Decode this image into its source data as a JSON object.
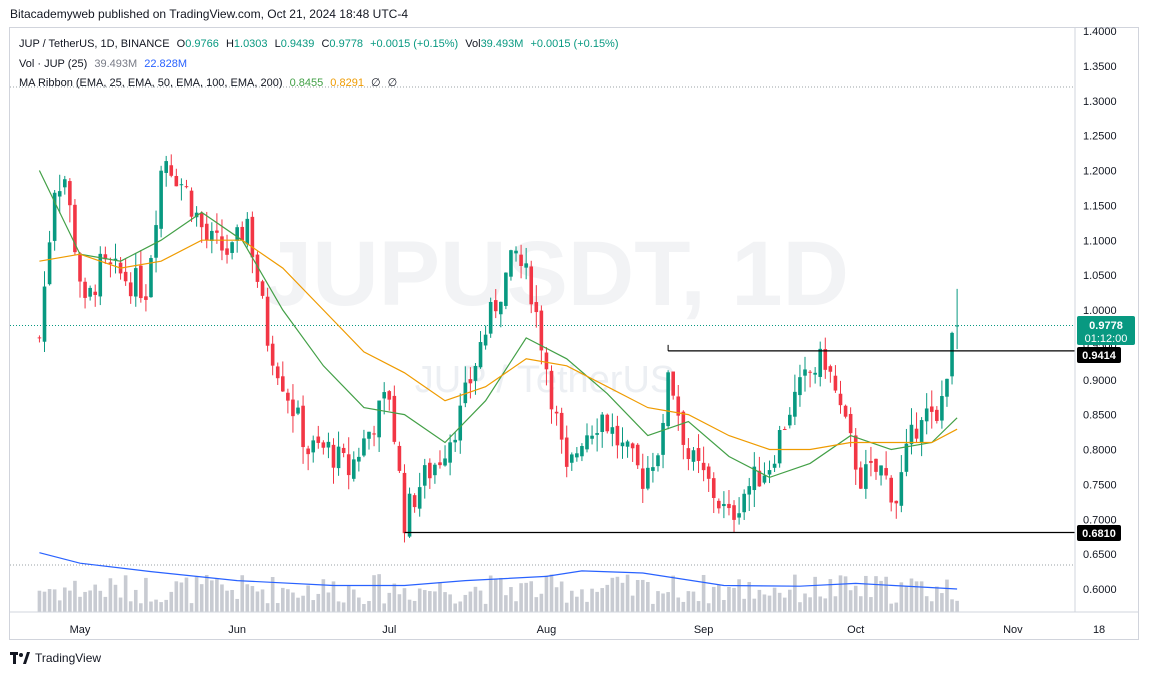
{
  "header_text": "Bitacademyweb published on TradingView.com, Oct 21, 2024 18:48 UTC-4",
  "legend": {
    "symbol": "JUP / TetherUS, 1D, BINANCE",
    "open_label": "O",
    "open": "0.9766",
    "high_label": "H",
    "high": "1.0303",
    "low_label": "L",
    "low": "0.9439",
    "close_label": "C",
    "close": "0.9778",
    "change": "+0.0015 (+0.15%)",
    "vol_label": "Vol",
    "vol": "39.493M",
    "vol_change": "+0.0015 (+0.15%)",
    "volume_indicator": "Vol · JUP (25)",
    "volume_value": "39.493M",
    "volume_ma": "22.828M",
    "ribbon_indicator": "MA Ribbon (EMA, 25, EMA, 50, EMA, 100, EMA, 200)",
    "ema25_value": "0.8455",
    "ema50_value": "0.8291",
    "ema100_value": "∅",
    "ema200_value": "∅"
  },
  "watermark": {
    "symbol": "JUPUSDT, 1D",
    "name": "JUP / TetherUS"
  },
  "price_tags": {
    "current": "0.9778",
    "countdown": "01:12:00",
    "resistance": "0.9414",
    "support": "0.6810"
  },
  "footer": {
    "brand": "TradingView"
  },
  "colors": {
    "up": "#089981",
    "down": "#f23645",
    "ema25": "#43a047",
    "ema50": "#ef9b00",
    "vol_ma": "#2962ff",
    "volume_bar": "#c8cbd2",
    "current_tag": "#089981",
    "level_tag": "#000000"
  },
  "chart_data": {
    "type": "candlestick",
    "title": "JUP / TetherUS, 1D, BINANCE",
    "y_axis": {
      "ticks": [
        "1.4000",
        "1.3500",
        "1.3000",
        "1.2500",
        "1.2000",
        "1.1500",
        "1.1000",
        "1.0500",
        "1.0000",
        "0.9500",
        "0.9000",
        "0.8500",
        "0.8000",
        "0.7500",
        "0.7000",
        "0.6500",
        "0.6000"
      ],
      "ylim": [
        0.58,
        1.41
      ]
    },
    "x_axis": {
      "ticks": [
        "May",
        "Jun",
        "Jul",
        "Aug",
        "Sep",
        "Oct",
        "Nov",
        "18"
      ]
    },
    "horizontal_levels": [
      0.9414,
      0.681
    ],
    "current_price": 0.9778,
    "close_path": [
      [
        "Apr 23",
        0.96
      ],
      [
        "Apr 26",
        1.18
      ],
      [
        "Apr 28",
        1.19
      ],
      [
        "May 2",
        1.0
      ],
      [
        "May 5",
        1.06
      ],
      [
        "May 9",
        1.05
      ],
      [
        "May 14",
        1.03
      ],
      [
        "May 17",
        1.2
      ],
      [
        "May 18",
        1.22
      ],
      [
        "May 22",
        1.17
      ],
      [
        "May 26",
        1.1
      ],
      [
        "May 31",
        1.08
      ],
      [
        "Jun 3",
        1.13
      ],
      [
        "Jun 7",
        0.96
      ],
      [
        "Jun 11",
        0.88
      ],
      [
        "Jun 15",
        0.8
      ],
      [
        "Jun 19",
        0.8
      ],
      [
        "Jun 23",
        0.77
      ],
      [
        "Jun 28",
        0.84
      ],
      [
        "Jul 1",
        0.88
      ],
      [
        "Jul 4",
        0.7
      ],
      [
        "Jul 7",
        0.75
      ],
      [
        "Jul 11",
        0.79
      ],
      [
        "Jul 15",
        0.85
      ],
      [
        "Jul 19",
        0.95
      ],
      [
        "Jul 23",
        1.03
      ],
      [
        "Jul 26",
        1.08
      ],
      [
        "Jul 29",
        1.03
      ],
      [
        "Aug 1",
        0.92
      ],
      [
        "Aug 5",
        0.76
      ],
      [
        "Aug 8",
        0.82
      ],
      [
        "Aug 12",
        0.85
      ],
      [
        "Aug 16",
        0.8
      ],
      [
        "Aug 20",
        0.76
      ],
      [
        "Aug 24",
        0.82
      ],
      [
        "Aug 25",
        0.92
      ],
      [
        "Aug 29",
        0.79
      ],
      [
        "Sep 2",
        0.75
      ],
      [
        "Sep 6",
        0.7
      ],
      [
        "Sep 9",
        0.74
      ],
      [
        "Sep 14",
        0.78
      ],
      [
        "Sep 18",
        0.86
      ],
      [
        "Sep 22",
        0.91
      ],
      [
        "Sep 25",
        0.93
      ],
      [
        "Sep 29",
        0.83
      ],
      [
        "Oct 2",
        0.76
      ],
      [
        "Oct 6",
        0.77
      ],
      [
        "Oct 9",
        0.73
      ],
      [
        "Oct 11",
        0.79
      ],
      [
        "Oct 14",
        0.86
      ],
      [
        "Oct 17",
        0.83
      ],
      [
        "Oct 19",
        0.92
      ],
      [
        "Oct 21",
        0.9778
      ]
    ],
    "ema25_path": [
      [
        "Apr 23",
        1.2
      ],
      [
        "May 1",
        1.08
      ],
      [
        "May 9",
        1.07
      ],
      [
        "May 17",
        1.1
      ],
      [
        "May 25",
        1.14
      ],
      [
        "Jun 2",
        1.1
      ],
      [
        "Jun 10",
        1.0
      ],
      [
        "Jun 18",
        0.92
      ],
      [
        "Jun 26",
        0.86
      ],
      [
        "Jul 4",
        0.85
      ],
      [
        "Jul 12",
        0.81
      ],
      [
        "Jul 20",
        0.87
      ],
      [
        "Jul 28",
        0.96
      ],
      [
        "Aug 5",
        0.93
      ],
      [
        "Aug 13",
        0.88
      ],
      [
        "Aug 21",
        0.82
      ],
      [
        "Aug 29",
        0.84
      ],
      [
        "Sep 6",
        0.79
      ],
      [
        "Sep 14",
        0.76
      ],
      [
        "Sep 22",
        0.78
      ],
      [
        "Sep 30",
        0.82
      ],
      [
        "Oct 8",
        0.8
      ],
      [
        "Oct 16",
        0.81
      ],
      [
        "Oct 21",
        0.8455
      ]
    ],
    "ema50_path": [
      [
        "Apr 23",
        1.07
      ],
      [
        "May 1",
        1.08
      ],
      [
        "May 9",
        1.06
      ],
      [
        "May 17",
        1.07
      ],
      [
        "May 25",
        1.1
      ],
      [
        "Jun 2",
        1.1
      ],
      [
        "Jun 10",
        1.06
      ],
      [
        "Jun 18",
        1.0
      ],
      [
        "Jun 26",
        0.94
      ],
      [
        "Jul 4",
        0.91
      ],
      [
        "Jul 12",
        0.87
      ],
      [
        "Jul 20",
        0.89
      ],
      [
        "Jul 28",
        0.93
      ],
      [
        "Aug 5",
        0.92
      ],
      [
        "Aug 13",
        0.89
      ],
      [
        "Aug 21",
        0.86
      ],
      [
        "Aug 29",
        0.85
      ],
      [
        "Sep 6",
        0.82
      ],
      [
        "Sep 14",
        0.8
      ],
      [
        "Sep 22",
        0.8
      ],
      [
        "Sep 30",
        0.81
      ],
      [
        "Oct 8",
        0.81
      ],
      [
        "Oct 16",
        0.81
      ],
      [
        "Oct 21",
        0.8291
      ]
    ],
    "volume_ma_path": [
      [
        "Apr 23",
        0.652
      ],
      [
        "May 1",
        0.637
      ],
      [
        "May 15",
        0.625
      ],
      [
        "Jun 1",
        0.612
      ],
      [
        "Jun 20",
        0.605
      ],
      [
        "Jul 4",
        0.605
      ],
      [
        "Jul 16",
        0.612
      ],
      [
        "Aug 1",
        0.618
      ],
      [
        "Aug 8",
        0.626
      ],
      [
        "Aug 20",
        0.623
      ],
      [
        "Sep 5",
        0.605
      ],
      [
        "Sep 20",
        0.604
      ],
      [
        "Oct 1",
        0.608
      ],
      [
        "Oct 21",
        0.6
      ]
    ]
  }
}
